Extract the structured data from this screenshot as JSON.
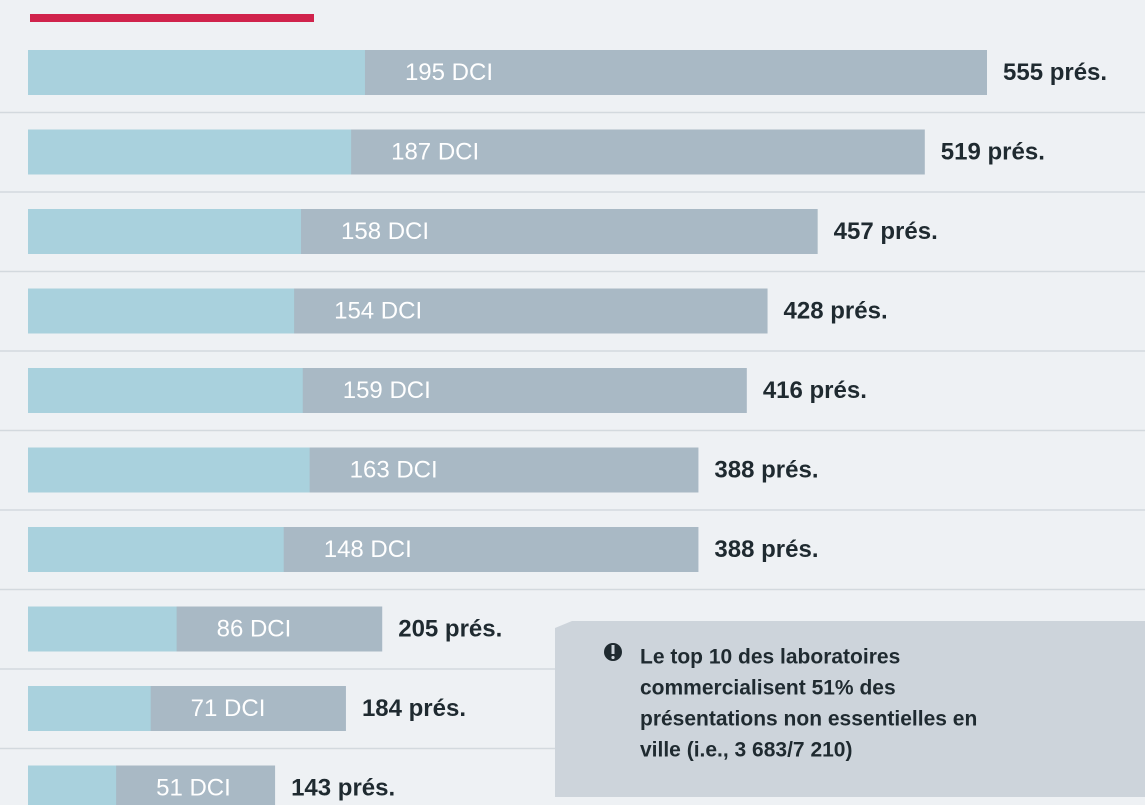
{
  "chart_data": {
    "type": "overlay-bar",
    "dci": {
      "color": "#a9d1dd",
      "values": [
        195,
        187,
        158,
        154,
        159,
        163,
        148,
        86,
        71,
        51
      ],
      "value_labels": [
        "195 DCI",
        "187 DCI",
        "158 DCI",
        "154 DCI",
        "159 DCI",
        "163 DCI",
        "148 DCI",
        "86 DCI",
        "71 DCI",
        "51 DCI"
      ]
    },
    "pres": {
      "color": "#a9b9c5",
      "values": [
        555,
        519,
        457,
        428,
        416,
        388,
        388,
        205,
        184,
        143
      ],
      "value_labels": [
        "555 prés.",
        "519 prés.",
        "457 prés.",
        "428 prés.",
        "416 prés.",
        "388 prés.",
        "388 prés.",
        "205 prés.",
        "184 prés.",
        "143 prés."
      ]
    },
    "xlim": [
      0,
      555
    ],
    "annotation": [
      "Le top 10 des laboratoires",
      "commercialisent 51% des",
      "présentations non essentielles en",
      "ville (i.e., 3 683/7 210)"
    ]
  }
}
